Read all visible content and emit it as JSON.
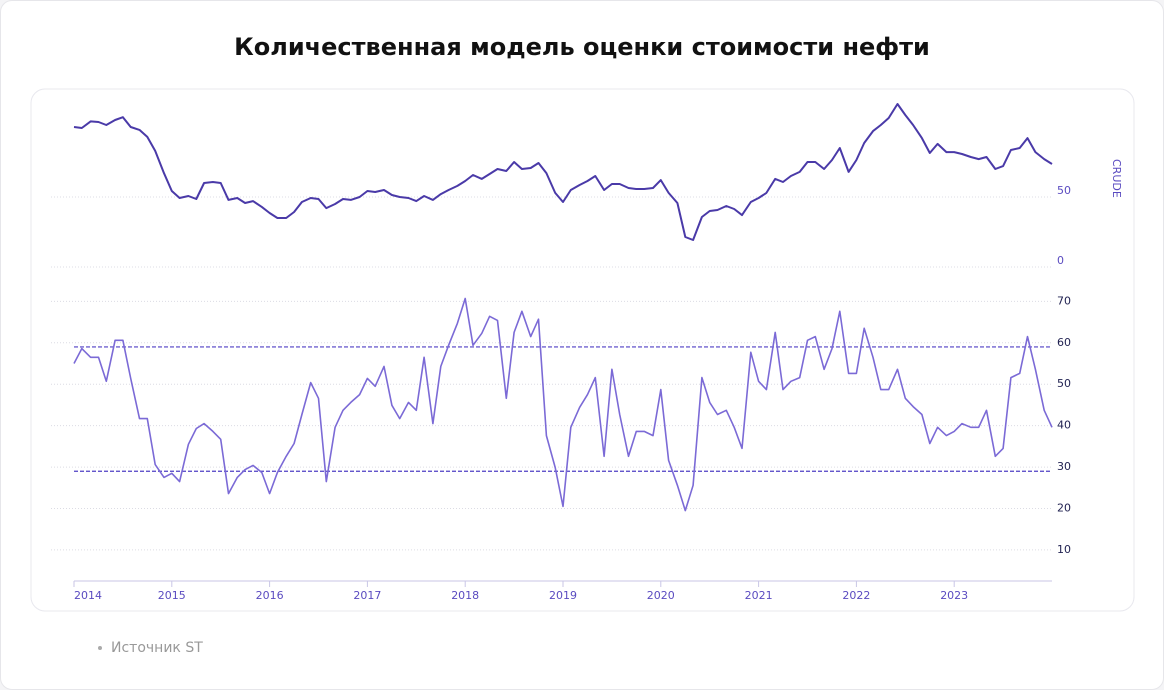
{
  "chart_data": {
    "type": "line",
    "title": "Количественная модель оценки стоимости нефти",
    "source": "Источник ST",
    "x": [
      2014,
      2014.08,
      2014.17,
      2014.25,
      2014.33,
      2014.42,
      2014.5,
      2014.58,
      2014.67,
      2014.75,
      2014.83,
      2014.92,
      2015,
      2015.08,
      2015.17,
      2015.25,
      2015.33,
      2015.42,
      2015.5,
      2015.58,
      2015.67,
      2015.75,
      2015.83,
      2015.92,
      2016,
      2016.08,
      2016.17,
      2016.25,
      2016.33,
      2016.42,
      2016.5,
      2016.58,
      2016.67,
      2016.75,
      2016.83,
      2016.92,
      2017,
      2017.08,
      2017.17,
      2017.25,
      2017.33,
      2017.42,
      2017.5,
      2017.58,
      2017.67,
      2017.75,
      2017.83,
      2017.92,
      2018,
      2018.08,
      2018.17,
      2018.25,
      2018.33,
      2018.42,
      2018.5,
      2018.58,
      2018.67,
      2018.75,
      2018.83,
      2018.92,
      2019,
      2019.08,
      2019.17,
      2019.25,
      2019.33,
      2019.42,
      2019.5,
      2019.58,
      2019.67,
      2019.75,
      2019.83,
      2019.92,
      2020,
      2020.08,
      2020.17,
      2020.25,
      2020.33,
      2020.42,
      2020.5,
      2020.58,
      2020.67,
      2020.75,
      2020.83,
      2020.92,
      2021,
      2021.08,
      2021.17,
      2021.25,
      2021.33,
      2021.42,
      2021.5,
      2021.58,
      2021.67,
      2021.75,
      2021.83,
      2021.92,
      2022,
      2022.08,
      2022.17,
      2022.25,
      2022.33,
      2022.42,
      2022.5,
      2022.58,
      2022.67,
      2022.75,
      2022.83,
      2022.92,
      2023,
      2023.08,
      2023.17,
      2023.25,
      2023.33,
      2023.42,
      2023.5,
      2023.58,
      2023.67,
      2023.75,
      2023.83,
      2023.92,
      2024
    ],
    "xlim": [
      2014,
      2024
    ],
    "xticks": [
      2014,
      2015,
      2016,
      2017,
      2018,
      2019,
      2020,
      2021,
      2022,
      2023
    ],
    "panels": [
      {
        "ylabel": "CRUDE",
        "ylim": [
          0,
          118
        ],
        "yticks": [
          0,
          50
        ],
        "grid": true,
        "series": [
          {
            "color": "#4a3aa8",
            "values": [
              100,
              99.3,
              104,
              103.6,
              101.4,
              105,
              107,
              100,
              97.9,
              92.9,
              82.9,
              67,
              54.3,
              49.3,
              50.7,
              48.6,
              60,
              60.7,
              60,
              47.9,
              49.3,
              45.7,
              47.1,
              42.9,
              38.6,
              35,
              35,
              39.3,
              46.4,
              49.3,
              48.6,
              42.1,
              45,
              48.6,
              47.9,
              50,
              54.3,
              53.6,
              55,
              51.4,
              50,
              49.3,
              47.1,
              50.7,
              47.9,
              52.1,
              55,
              57.9,
              61.4,
              65.7,
              62.9,
              66.4,
              70,
              68.6,
              75,
              70,
              70.7,
              74.3,
              67.1,
              52.9,
              46.4,
              55,
              58.6,
              61.4,
              65,
              55,
              59.3,
              59.3,
              56.4,
              55.7,
              55.7,
              56.4,
              62.1,
              52.9,
              45.7,
              21.4,
              19.3,
              35.7,
              40,
              40.7,
              43.6,
              41.4,
              37.1,
              46.4,
              49.3,
              52.9,
              62.9,
              60.7,
              65,
              67.9,
              75,
              75,
              70,
              76.4,
              85,
              67.9,
              76.4,
              88.6,
              97.1,
              101.4,
              106.4,
              116.4,
              108.6,
              101.4,
              92.1,
              81.4,
              87.9,
              82.1,
              82.1,
              80.7,
              78.6,
              77.1,
              78.6,
              70,
              72.1,
              83.6,
              85,
              92.1,
              82.1,
              77.1,
              73.6
            ]
          }
        ]
      },
      {
        "ylim": [
          2.5,
          72.5
        ],
        "yticks": [
          10,
          20,
          30,
          40,
          50,
          60,
          70
        ],
        "grid": true,
        "reference_lines": [
          59,
          29
        ],
        "reference_color": "#4f3fc4",
        "series": [
          {
            "color": "#7b6ad6",
            "values": [
              55,
              58.6,
              56.5,
              56.5,
              50.7,
              60.6,
              60.6,
              51.4,
              41.7,
              41.7,
              30.6,
              27.5,
              28.5,
              26.5,
              35.5,
              39.3,
              40.5,
              38.6,
              36.7,
              23.6,
              27.5,
              29.4,
              30.4,
              28.7,
              23.6,
              28.7,
              32.6,
              35.7,
              42.7,
              50.4,
              46.6,
              26.5,
              39.6,
              43.7,
              45.6,
              47.5,
              51.4,
              49.5,
              54.3,
              44.9,
              41.7,
              45.6,
              43.7,
              56.5,
              40.5,
              54.3,
              59.4,
              64.7,
              70.7,
              59.4,
              62.3,
              66.4,
              65.4,
              46.6,
              62.5,
              67.6,
              61.5,
              65.7,
              37.6,
              29.9,
              20.5,
              39.6,
              44.4,
              47.5,
              51.6,
              32.6,
              53.6,
              42.7,
              32.6,
              38.6,
              38.6,
              37.6,
              48.7,
              31.6,
              25.6,
              19.5,
              25.6,
              51.6,
              45.6,
              42.7,
              43.7,
              39.6,
              34.5,
              57.7,
              50.7,
              48.7,
              62.5,
              48.7,
              50.7,
              51.6,
              60.6,
              61.5,
              53.6,
              58.6,
              67.6,
              52.6,
              52.6,
              63.5,
              56.5,
              48.7,
              48.7,
              53.6,
              46.6,
              44.6,
              42.7,
              35.7,
              39.6,
              37.6,
              38.6,
              40.5,
              39.6,
              39.6,
              43.7,
              32.6,
              34.5,
              51.6,
              52.6,
              61.5,
              53.6,
              43.7,
              39.6
            ]
          }
        ]
      }
    ]
  }
}
